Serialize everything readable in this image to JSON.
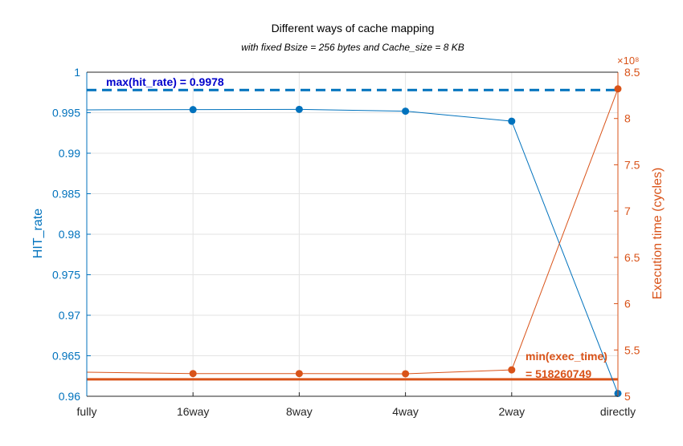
{
  "chart_data": {
    "type": "line",
    "title": "Different ways of cache mapping",
    "subtitle": "with fixed Bsize = 256 bytes and Cache_size = 8 KB",
    "categories": [
      "fully",
      "16way",
      "8way",
      "4way",
      "2way",
      "directly"
    ],
    "left_axis": {
      "label": "HIT_rate",
      "ylim": [
        0.96,
        1.0
      ],
      "ticks": [
        "0.96",
        "0.965",
        "0.97",
        "0.975",
        "0.98",
        "0.985",
        "0.99",
        "0.995",
        "1"
      ],
      "color": "#0072BD"
    },
    "right_axis": {
      "label": "Execution time (cycles)",
      "exponent": "×10⁸",
      "ylim": [
        5,
        8.5
      ],
      "ticks": [
        "5",
        "5.5",
        "6",
        "6.5",
        "7",
        "7.5",
        "8",
        "8.5"
      ],
      "color": "#D95319"
    },
    "series": [
      {
        "axis": "left",
        "color": "#0072BD",
        "values": [
          0.99535,
          0.99538,
          0.99541,
          0.99519,
          0.99395,
          0.96035
        ],
        "markers": [
          false,
          true,
          true,
          true,
          true,
          true
        ]
      },
      {
        "axis": "right",
        "color": "#D95319",
        "values": [
          5.26,
          5.245,
          5.245,
          5.243,
          5.285,
          8.32
        ],
        "markers": [
          false,
          true,
          true,
          true,
          true,
          true
        ]
      }
    ],
    "reference_lines": [
      {
        "axis": "left",
        "value": 0.9978,
        "style": "dashed",
        "color": "#0072BD",
        "label": "max(hit_rate) = 0.9978",
        "label_color": "#0000CC"
      },
      {
        "axis": "right",
        "value": 5.1826,
        "style": "solid",
        "color": "#D95319",
        "label_line1": "min(exec_time)",
        "label_line2": "= 518260749",
        "label_color": "#D95319"
      }
    ],
    "grid": true
  }
}
